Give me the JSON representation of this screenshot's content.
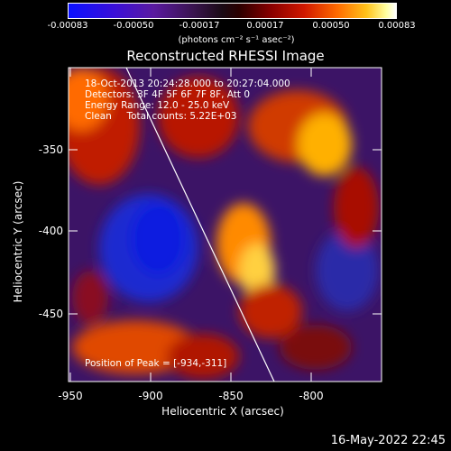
{
  "colorbar": {
    "ticks": [
      "-0.00083",
      "-0.00050",
      "-0.00017",
      "0.00017",
      "0.00050",
      "0.00083"
    ],
    "units": "(photons cm⁻² s⁻¹ asec⁻²)"
  },
  "plot": {
    "title": "Reconstructed RHESSI Image",
    "info_lines": [
      "18-Oct-2013 20:24:28.000 to 20:27:04.000",
      "Detectors: 3F 4F 5F 6F 7F 8F, Att 0",
      "Energy Range: 12.0 - 25.0 keV",
      "Clean     Total counts: 5.22E+03"
    ],
    "peak_text": "Position of Peak = [-934,-311]",
    "xlabel": "Heliocentric X (arcsec)",
    "ylabel": "Heliocentric Y (arcsec)",
    "xticks": [
      "-950",
      "-900",
      "-850",
      "-800"
    ],
    "yticks": [
      "-350",
      "-400",
      "-450"
    ]
  },
  "footer": {
    "date": "16-May-2022 22:45"
  },
  "colors": {
    "axis": "#ffffff",
    "background": "#000000"
  }
}
